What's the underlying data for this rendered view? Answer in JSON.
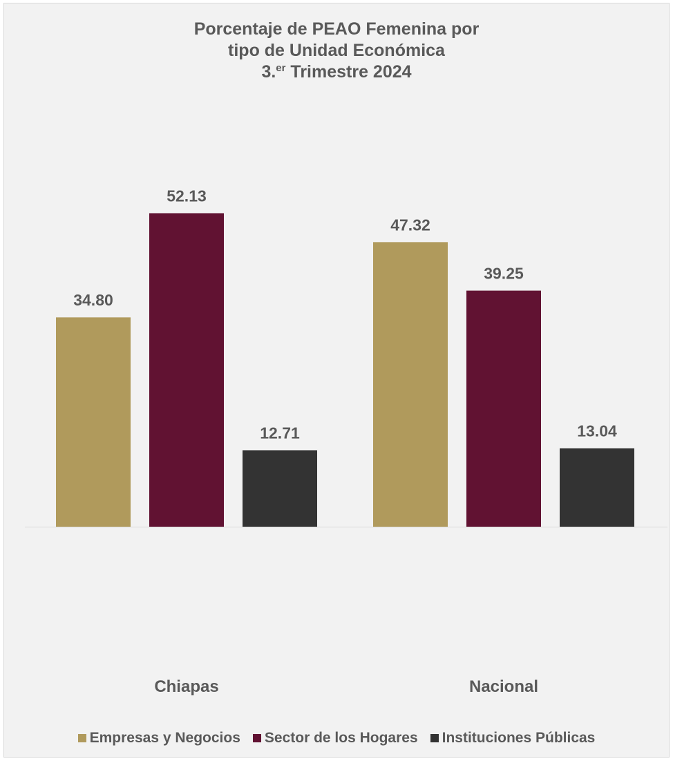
{
  "chart_data": {
    "type": "bar",
    "title_line1": "Porcentaje de PEAO Femenina por",
    "title_line2": "tipo de Unidad Económica",
    "title_line3_pre": "3.",
    "title_line3_sup": "er",
    "title_line3_post": " Trimestre 2024",
    "categories": [
      "Chiapas",
      "Nacional"
    ],
    "series": [
      {
        "name": "Empresas y Negocios",
        "values": [
          34.8,
          47.32
        ],
        "labels": [
          "34.80",
          "47.32"
        ],
        "color": "#b09a5c"
      },
      {
        "name": "Sector de los Hogares",
        "values": [
          52.13,
          39.25
        ],
        "labels": [
          "52.13",
          "39.25"
        ],
        "color": "#611232"
      },
      {
        "name": "Instituciones Públicas",
        "values": [
          12.71,
          13.04
        ],
        "labels": [
          "12.71",
          "13.04"
        ],
        "color": "#333333"
      }
    ],
    "ylim": [
      0,
      60
    ],
    "grid": false,
    "legend_position": "bottom"
  }
}
